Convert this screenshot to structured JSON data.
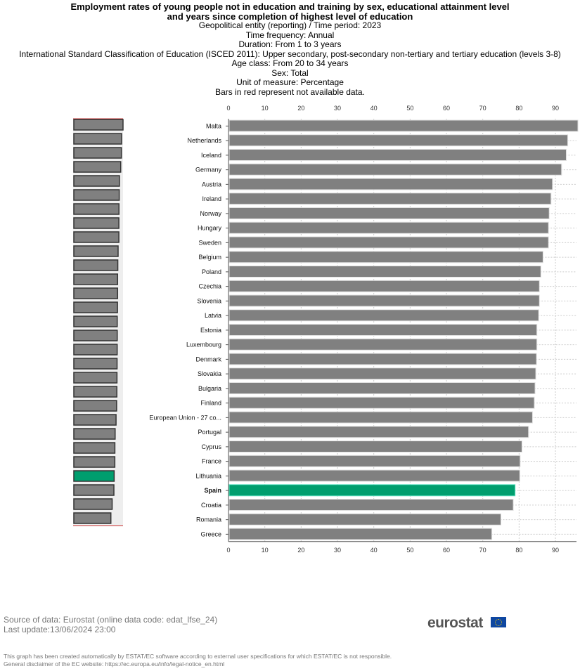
{
  "header": {
    "title_lines": [
      "Employment rates of young people not in education and training by sex, educational attainment level",
      "and years since completion of highest level of education"
    ],
    "subtitles": [
      "Geopolitical entity (reporting) / Time period: 2023",
      "Time frequency: Annual",
      "Duration: From 1 to 3 years",
      "International Standard Classification of Education (ISCED 2011): Upper secondary, post-secondary non-tertiary and tertiary education (levels 3-8)",
      "Age class: From 20 to 34 years",
      "Sex: Total",
      "Unit of measure: Percentage",
      "Bars in red represent not available data."
    ]
  },
  "chart_data": {
    "type": "bar",
    "orientation": "horizontal",
    "categories": [
      "Malta",
      "Netherlands",
      "Iceland",
      "Germany",
      "Austria",
      "Ireland",
      "Norway",
      "Hungary",
      "Sweden",
      "Belgium",
      "Poland",
      "Czechia",
      "Slovenia",
      "Latvia",
      "Estonia",
      "Luxembourg",
      "Denmark",
      "Slovakia",
      "Bulgaria",
      "Finland",
      "European Union - 27 co...",
      "Portugal",
      "Cyprus",
      "France",
      "Lithuania",
      "Spain",
      "Croatia",
      "Romania",
      "Greece"
    ],
    "values": [
      96.0,
      93.2,
      92.8,
      91.5,
      89.0,
      88.6,
      88.1,
      87.9,
      87.9,
      86.4,
      85.8,
      85.4,
      85.4,
      85.2,
      84.7,
      84.7,
      84.6,
      84.4,
      84.2,
      84.0,
      83.5,
      82.4,
      80.6,
      80.1,
      80.0,
      78.7,
      78.2,
      74.8,
      72.3
    ],
    "highlight": "Spain",
    "ticks": [
      0,
      10,
      20,
      30,
      40,
      50,
      60,
      70,
      80,
      90
    ],
    "xlim": [
      0,
      95.8
    ],
    "grid": true,
    "colors": {
      "bar": "#808080",
      "highlight": "#009e6e",
      "na": "#c00000"
    }
  },
  "footer": {
    "source": "Source of data: Eurostat (online data code: edat_lfse_24)",
    "update": "Last update:13/06/2024 23:00",
    "disclaimer1": "This graph has been created automatically by ESTAT/EC software according to external user specifications for which ESTAT/EC is not responsible.",
    "disclaimer2": "General disclaimer of the EC website: https://ec.europa.eu/info/legal-notice_en.html",
    "logo": "eurostat"
  }
}
